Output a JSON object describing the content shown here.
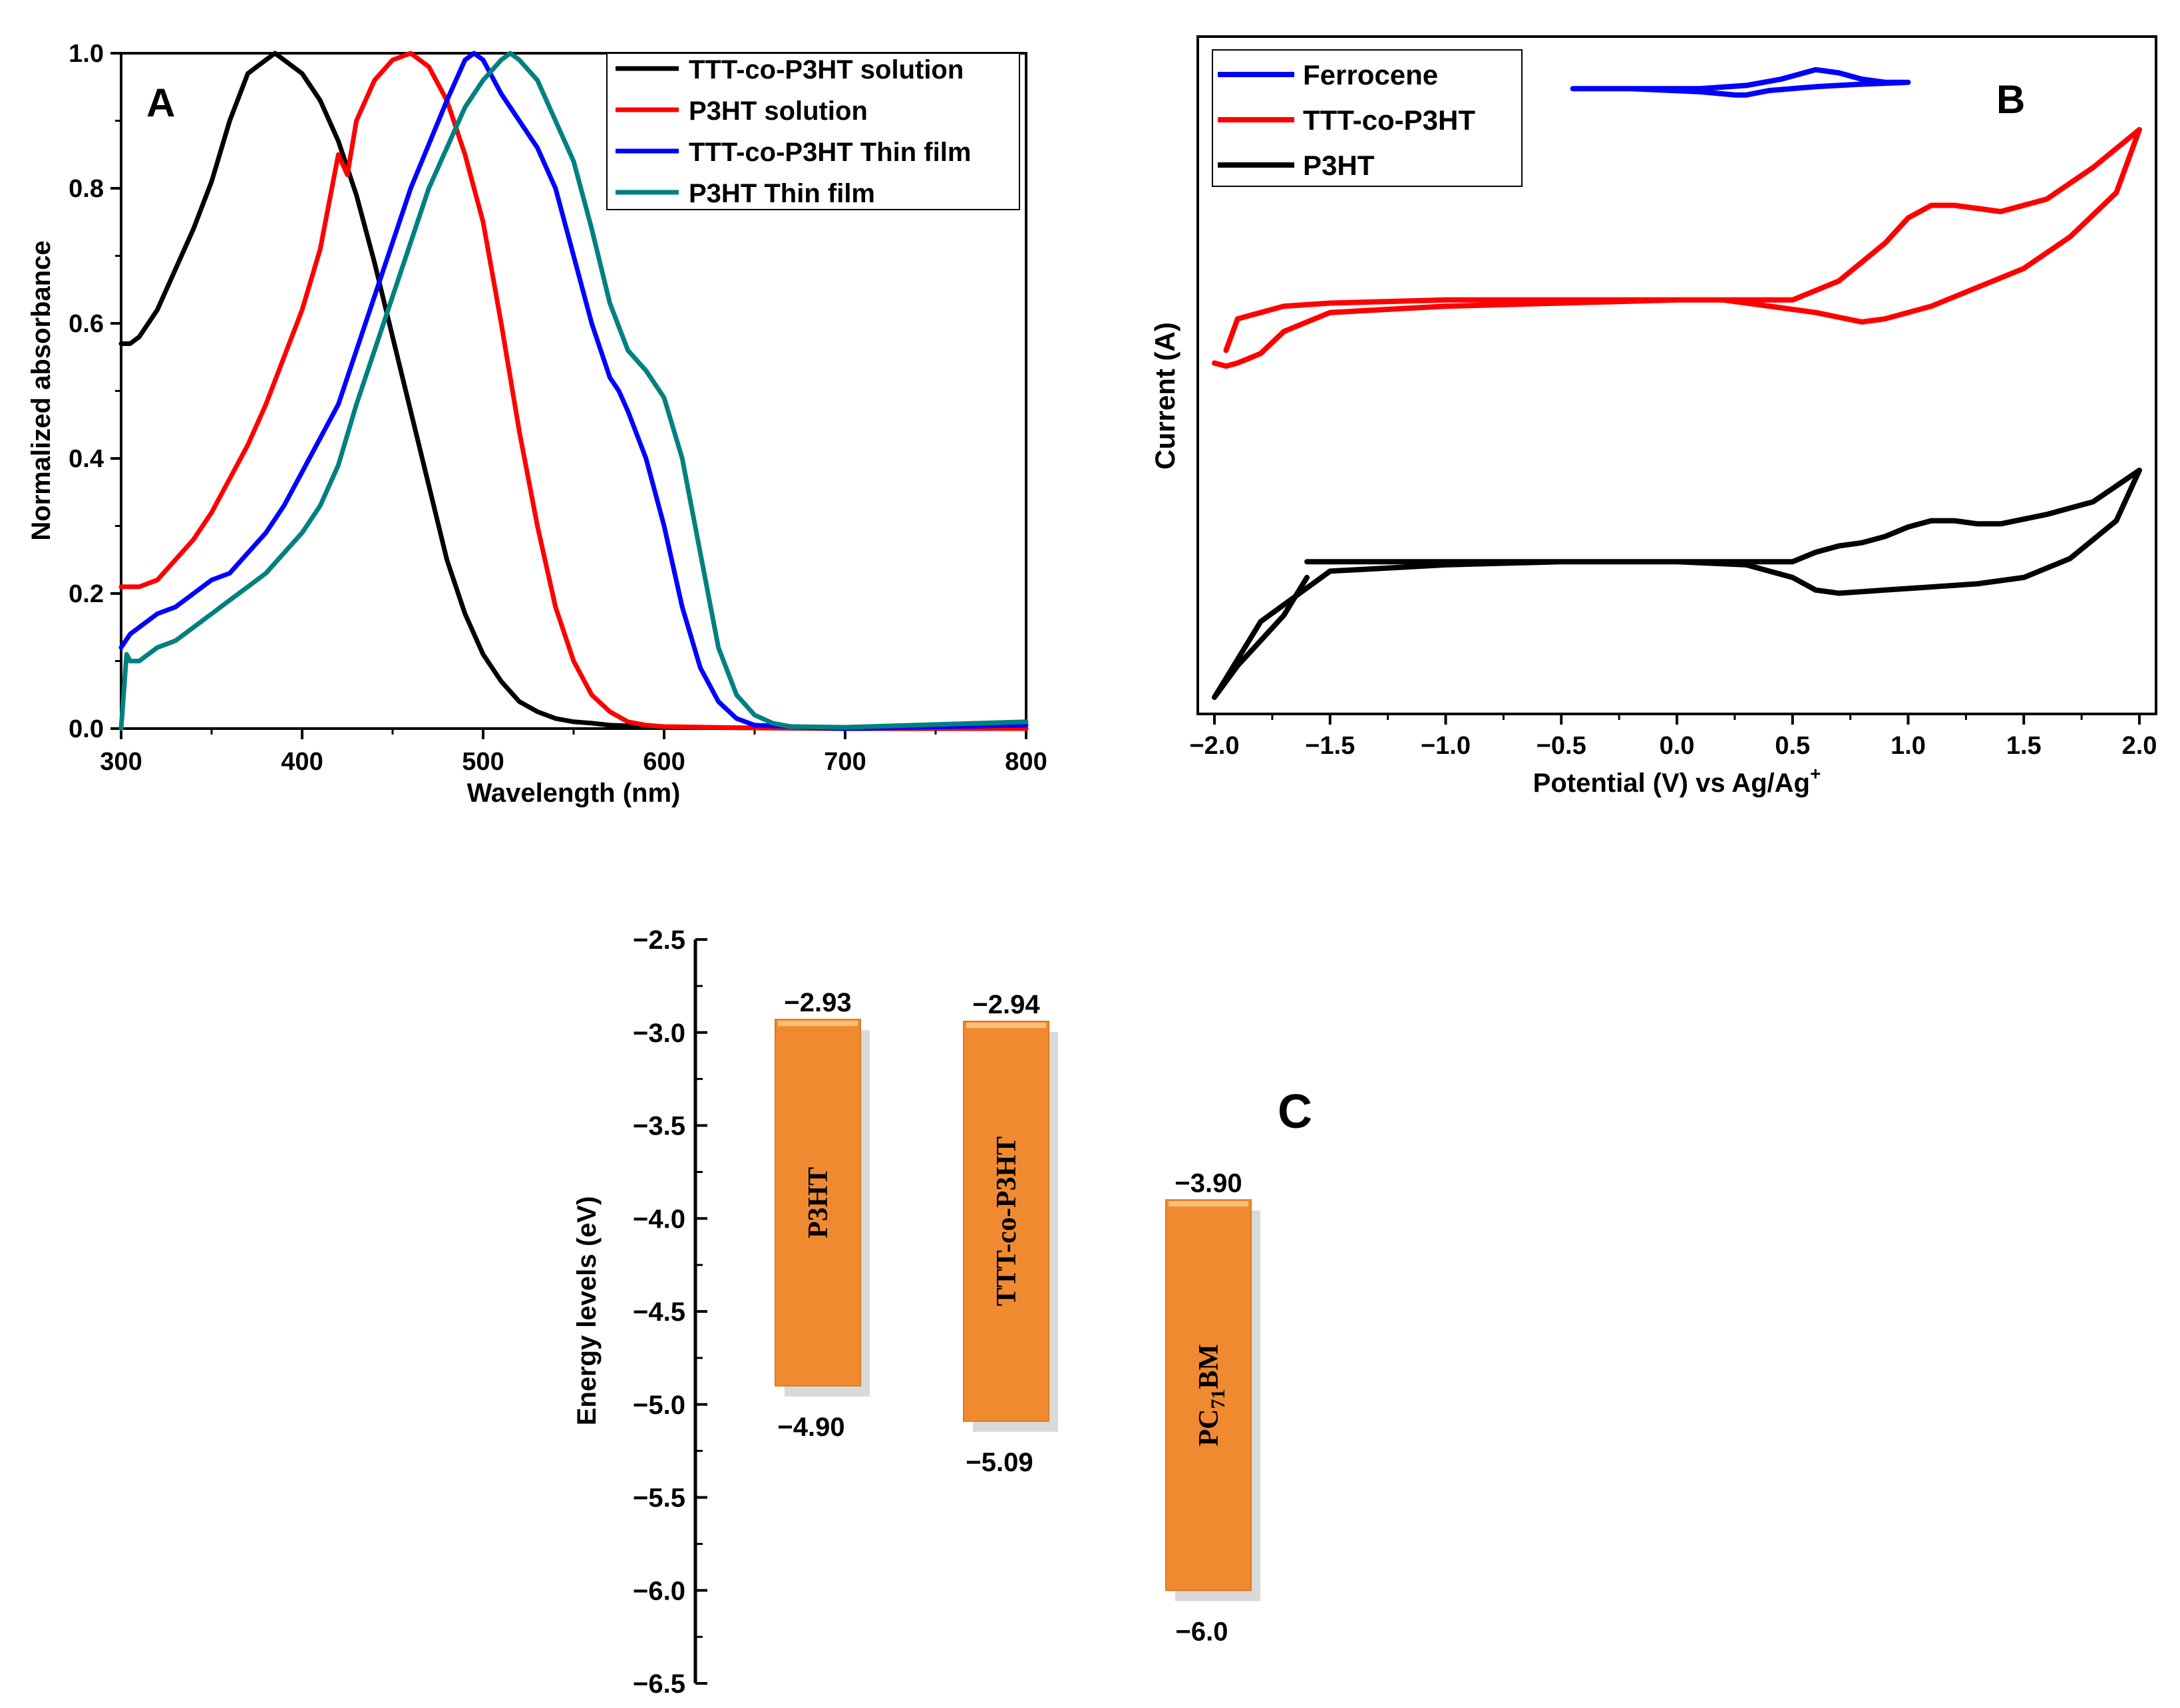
{
  "chart_data": [
    {
      "panel": "A",
      "type": "line",
      "panel_label": "A",
      "xlabel": "Wavelength (nm)",
      "ylabel": "Normalized absorbance",
      "xlim": [
        300,
        800
      ],
      "ylim": [
        0,
        1.0
      ],
      "xticks": [
        "300",
        "400",
        "500",
        "600",
        "700",
        "800"
      ],
      "yticks": [
        "0.0",
        "0.2",
        "0.4",
        "0.6",
        "0.8",
        "1.0"
      ],
      "legend_position": "top-right",
      "series": [
        {
          "name": "TTT-co-P3HT solution",
          "color": "#000000",
          "x": [
            300,
            305,
            310,
            320,
            330,
            340,
            350,
            360,
            370,
            380,
            385,
            390,
            400,
            410,
            420,
            430,
            440,
            450,
            460,
            470,
            480,
            490,
            500,
            510,
            520,
            530,
            540,
            550,
            560,
            570,
            580,
            590,
            600,
            650,
            700,
            800
          ],
          "y": [
            0.57,
            0.57,
            0.58,
            0.62,
            0.68,
            0.74,
            0.81,
            0.9,
            0.97,
            0.99,
            1.0,
            0.99,
            0.97,
            0.93,
            0.87,
            0.79,
            0.69,
            0.58,
            0.47,
            0.36,
            0.25,
            0.17,
            0.11,
            0.07,
            0.04,
            0.025,
            0.015,
            0.01,
            0.008,
            0.005,
            0.004,
            0.003,
            0.002,
            0.001,
            0.0,
            0.0
          ]
        },
        {
          "name": "P3HT solution",
          "color": "#ff0000",
          "x": [
            300,
            305,
            310,
            320,
            330,
            340,
            350,
            360,
            370,
            380,
            390,
            400,
            410,
            420,
            425,
            430,
            440,
            450,
            460,
            470,
            480,
            490,
            500,
            510,
            520,
            530,
            540,
            550,
            560,
            570,
            580,
            590,
            600,
            650,
            800
          ],
          "y": [
            0.21,
            0.21,
            0.21,
            0.22,
            0.25,
            0.28,
            0.32,
            0.37,
            0.42,
            0.48,
            0.55,
            0.62,
            0.71,
            0.85,
            0.82,
            0.9,
            0.96,
            0.99,
            1.0,
            0.98,
            0.93,
            0.85,
            0.75,
            0.6,
            0.44,
            0.3,
            0.18,
            0.1,
            0.05,
            0.025,
            0.01,
            0.005,
            0.003,
            0.001,
            0.0
          ]
        },
        {
          "name": "TTT-co-P3HT Thin film",
          "color": "#0000ff",
          "x": [
            300,
            305,
            310,
            320,
            330,
            340,
            350,
            360,
            370,
            380,
            390,
            400,
            420,
            440,
            460,
            480,
            490,
            495,
            500,
            510,
            520,
            530,
            540,
            550,
            560,
            570,
            575,
            580,
            590,
            600,
            610,
            620,
            630,
            640,
            650,
            700,
            800
          ],
          "y": [
            0.12,
            0.14,
            0.15,
            0.17,
            0.18,
            0.2,
            0.22,
            0.23,
            0.26,
            0.29,
            0.33,
            0.38,
            0.48,
            0.64,
            0.8,
            0.93,
            0.99,
            1.0,
            0.99,
            0.94,
            0.9,
            0.86,
            0.8,
            0.7,
            0.6,
            0.52,
            0.5,
            0.47,
            0.4,
            0.3,
            0.18,
            0.09,
            0.04,
            0.015,
            0.005,
            0.0,
            0.005
          ]
        },
        {
          "name": "P3HT Thin film",
          "color": "#008080",
          "x": [
            300,
            303,
            305,
            310,
            320,
            330,
            340,
            350,
            360,
            370,
            380,
            390,
            400,
            410,
            420,
            430,
            440,
            450,
            460,
            470,
            480,
            490,
            500,
            510,
            515,
            520,
            530,
            540,
            550,
            560,
            570,
            580,
            590,
            600,
            610,
            620,
            630,
            640,
            650,
            660,
            670,
            700,
            800
          ],
          "y": [
            0.0,
            0.11,
            0.1,
            0.1,
            0.12,
            0.13,
            0.15,
            0.17,
            0.19,
            0.21,
            0.23,
            0.26,
            0.29,
            0.33,
            0.39,
            0.48,
            0.56,
            0.64,
            0.72,
            0.8,
            0.86,
            0.92,
            0.96,
            0.99,
            1.0,
            0.99,
            0.96,
            0.9,
            0.84,
            0.74,
            0.63,
            0.56,
            0.53,
            0.49,
            0.4,
            0.26,
            0.12,
            0.05,
            0.02,
            0.008,
            0.003,
            0.002,
            0.01
          ]
        }
      ]
    },
    {
      "panel": "B",
      "type": "line",
      "panel_label": "B",
      "xlabel": "Potential (V) vs Ag/Ag",
      "xlabel_sup": "+",
      "ylabel": "Current (A)",
      "xlim": [
        -2.0,
        2.0
      ],
      "xticks": [
        "−2.0",
        "−1.5",
        "−1.0",
        "−0.5",
        "0.0",
        "0.5",
        "1.0",
        "1.5",
        "2.0"
      ],
      "y_units": "arbitrary (offset, no tick labels)",
      "legend_position": "top-left",
      "series": [
        {
          "name": "Ferrocene",
          "color": "#0000ff",
          "x": [
            -0.45,
            -0.2,
            0.1,
            0.3,
            0.45,
            0.55,
            0.6,
            0.7,
            0.8,
            0.9,
            1.0,
            0.8,
            0.6,
            0.4,
            0.3,
            0.25,
            0.1,
            -0.2,
            -0.45
          ],
          "y": [
            0.965,
            0.965,
            0.965,
            0.97,
            0.98,
            0.99,
            0.995,
            0.99,
            0.98,
            0.975,
            0.975,
            0.972,
            0.968,
            0.962,
            0.955,
            0.955,
            0.96,
            0.965,
            0.965
          ]
        },
        {
          "name": "TTT-co-P3HT",
          "color": "#ff0000",
          "x": [
            -1.95,
            -1.9,
            -1.7,
            -1.5,
            -1.0,
            0.0,
            0.5,
            0.7,
            0.9,
            1.0,
            1.1,
            1.2,
            1.4,
            1.6,
            1.8,
            1.9,
            2.0,
            1.9,
            1.7,
            1.5,
            1.3,
            1.1,
            0.9,
            0.8,
            0.6,
            0.4,
            0.2,
            0.0,
            -0.5,
            -1.0,
            -1.5,
            -1.7,
            -1.8,
            -1.9,
            -1.95,
            -2.0
          ],
          "y": [
            0.55,
            0.6,
            0.62,
            0.625,
            0.63,
            0.63,
            0.63,
            0.66,
            0.72,
            0.76,
            0.78,
            0.78,
            0.77,
            0.79,
            0.84,
            0.87,
            0.9,
            0.8,
            0.73,
            0.68,
            0.65,
            0.62,
            0.6,
            0.595,
            0.61,
            0.62,
            0.63,
            0.63,
            0.625,
            0.62,
            0.61,
            0.58,
            0.545,
            0.53,
            0.525,
            0.53
          ]
        },
        {
          "name": "P3HT",
          "color": "#000000",
          "x": [
            -1.6,
            -1.5,
            -1.0,
            0.0,
            0.5,
            0.6,
            0.7,
            0.8,
            0.9,
            1.0,
            1.1,
            1.2,
            1.3,
            1.4,
            1.6,
            1.8,
            2.0,
            1.9,
            1.7,
            1.5,
            1.3,
            1.1,
            0.9,
            0.7,
            0.6,
            0.5,
            0.3,
            0.0,
            -0.5,
            -1.0,
            -1.5,
            -1.8,
            -2.0,
            -1.9,
            -1.7,
            -1.6
          ],
          "y": [
            0.215,
            0.215,
            0.215,
            0.215,
            0.215,
            0.23,
            0.24,
            0.245,
            0.255,
            0.27,
            0.28,
            0.28,
            0.275,
            0.275,
            0.29,
            0.31,
            0.36,
            0.28,
            0.22,
            0.19,
            0.18,
            0.175,
            0.17,
            0.165,
            0.17,
            0.19,
            0.21,
            0.215,
            0.215,
            0.21,
            0.2,
            0.12,
            0.0,
            0.05,
            0.13,
            0.19
          ]
        }
      ]
    },
    {
      "panel": "C",
      "type": "bar",
      "panel_label": "C",
      "ylabel": "Energy levels (eV)",
      "ylim": [
        -6.5,
        -2.5
      ],
      "yticks": [
        "−2.5",
        "−3.0",
        "−3.5",
        "−4.0",
        "−4.5",
        "−5.0",
        "−5.5",
        "−6.0",
        "−6.5"
      ],
      "bar_color": "#f08a30",
      "categories": [
        "P3HT",
        "TTT-co-P3HT",
        "PC71BM"
      ],
      "bars": [
        {
          "name": "P3HT",
          "lumo": -2.93,
          "homo": -4.9,
          "lumo_label": "−2.93",
          "homo_label": "−4.90"
        },
        {
          "name": "TTT-co-P3HT",
          "lumo": -2.94,
          "homo": -5.09,
          "lumo_label": "−2.94",
          "homo_label": "−5.09"
        },
        {
          "name": "PC71BM",
          "name_main_1": "PC",
          "name_sub": "71",
          "name_main_2": "BM",
          "lumo": -3.9,
          "homo": -6.0,
          "lumo_label": "−3.90",
          "homo_label": "−6.0"
        }
      ]
    }
  ]
}
